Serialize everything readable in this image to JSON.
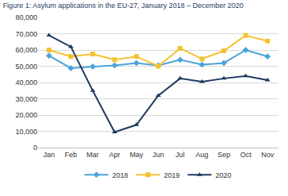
{
  "chart_data": {
    "type": "line",
    "title": "Figure 1: Asylum applications in the EU-27, January 2018 – December 2020",
    "categories": [
      "Jan",
      "Feb",
      "Mar",
      "Apr",
      "May",
      "Jun",
      "Jul",
      "Aug",
      "Sep",
      "Oct",
      "Nov"
    ],
    "series": [
      {
        "name": "2018",
        "color": "#4aa3d9",
        "marker": "diamond",
        "values": [
          56500,
          48800,
          49800,
          50500,
          52000,
          50500,
          54000,
          51000,
          52000,
          60000,
          56000
        ]
      },
      {
        "name": "2019",
        "color": "#f4c232",
        "marker": "square",
        "values": [
          60000,
          56000,
          57500,
          54000,
          56000,
          50000,
          61000,
          54500,
          59500,
          69000,
          65500
        ]
      },
      {
        "name": "2020",
        "color": "#1f3a5f",
        "marker": "triangle-up",
        "values": [
          69000,
          62000,
          35000,
          9500,
          14000,
          32000,
          42500,
          40500,
          42500,
          44000,
          41500
        ]
      }
    ],
    "ylim": [
      0,
      80000
    ],
    "yticks": [
      0,
      {
        "value": 10000,
        "label": "10,000"
      },
      {
        "value": 20000,
        "label": "20,000"
      },
      {
        "value": 30000,
        "label": "30,000"
      },
      {
        "value": 40000,
        "label": "40,000"
      },
      {
        "value": 50000,
        "label": "50,000"
      },
      {
        "value": 60000,
        "label": "60,000"
      },
      {
        "value": 70000,
        "label": "70,000"
      },
      {
        "value": 80000,
        "label": "80,000"
      }
    ],
    "grid": true,
    "legend": "bottom"
  }
}
